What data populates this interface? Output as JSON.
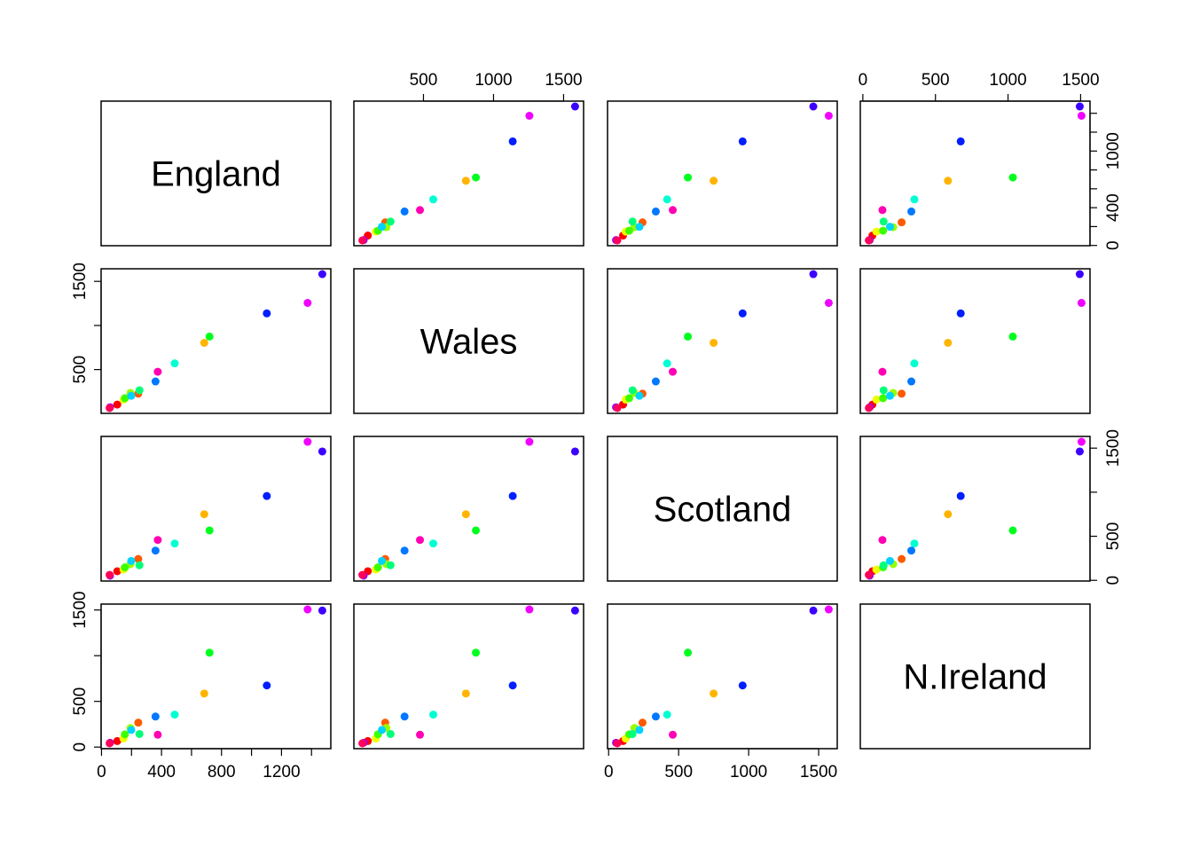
{
  "chart_data": {
    "type": "scatter_matrix",
    "point_colors": [
      "#FF0000",
      "#FF5A00",
      "#FFB400",
      "#F0FF00",
      "#96FF00",
      "#3CFF00",
      "#00FF1E",
      "#00FF78",
      "#00FFD2",
      "#00D2FF",
      "#0078FF",
      "#001EFF",
      "#3C00FF",
      "#9600FF",
      "#F000FF",
      "#FF00B4",
      "#FF005A"
    ],
    "variables": [
      {
        "name": "England",
        "values": [
          105,
          245,
          685,
          147,
          193,
          156,
          720,
          253,
          488,
          198,
          360,
          1102,
          1472,
          57,
          1374,
          375,
          54
        ],
        "lim": [
          -2.7,
          1528.7
        ],
        "ticks": [
          0,
          200,
          400,
          600,
          800,
          1000,
          1200,
          1400
        ],
        "col_axis_labels": [
          0,
          400,
          800,
          1200
        ],
        "row_axis_labels": [
          0,
          400,
          1000
        ]
      },
      {
        "name": "Wales",
        "values": [
          103,
          227,
          803,
          160,
          235,
          175,
          874,
          265,
          570,
          203,
          365,
          1137,
          1582,
          73,
          1256,
          475,
          64
        ],
        "lim": [
          3.3,
          1642.7
        ],
        "ticks": [
          500,
          1000,
          1500
        ],
        "col_axis_labels": [
          500,
          1000,
          1500
        ],
        "row_axis_labels": [
          500,
          1500
        ]
      },
      {
        "name": "Scotland",
        "values": [
          103,
          242,
          750,
          122,
          184,
          147,
          566,
          171,
          418,
          220,
          337,
          957,
          1462,
          53,
          1572,
          458,
          62
        ],
        "lim": [
          -7.8,
          1632.8
        ],
        "ticks": [
          0,
          500,
          1000,
          1500
        ],
        "col_axis_labels": [
          0,
          500,
          1000,
          1500
        ],
        "row_axis_labels": [
          0,
          500,
          1500
        ]
      },
      {
        "name": "N.Ireland",
        "values": [
          66,
          267,
          586,
          93,
          209,
          139,
          1033,
          143,
          355,
          187,
          334,
          674,
          1494,
          47,
          1506,
          135,
          41
        ],
        "lim": [
          -17.6,
          1564.6
        ],
        "ticks": [
          0,
          500,
          1000,
          1500
        ],
        "col_axis_labels": [
          0,
          500,
          1000,
          1500
        ],
        "row_axis_labels": [
          0,
          500,
          1500
        ]
      }
    ]
  }
}
